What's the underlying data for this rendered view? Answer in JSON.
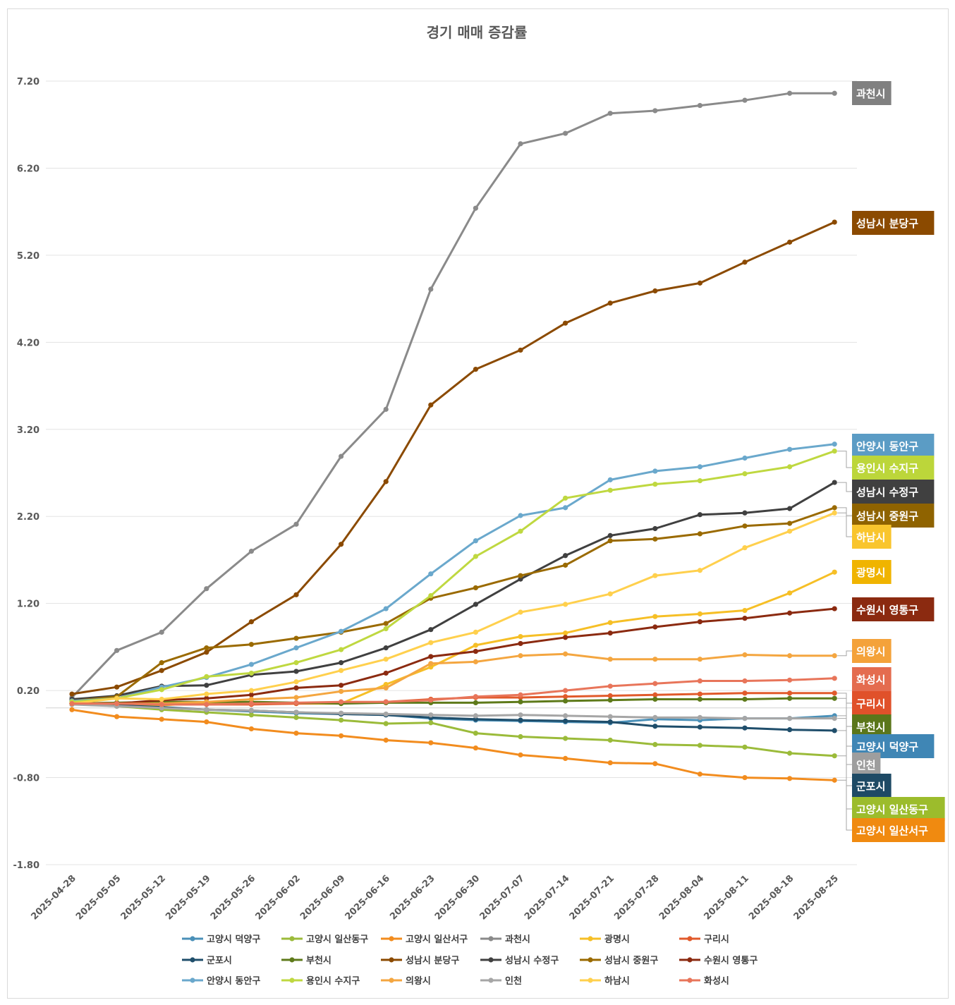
{
  "chart_data": {
    "type": "line",
    "title": "경기 매매 증감률",
    "xlabel": "",
    "ylabel": "",
    "ylim": [
      -1.8,
      7.2
    ],
    "yticks": [
      "7.20",
      "6.20",
      "5.20",
      "4.20",
      "3.20",
      "2.20",
      "1.20",
      "0.20",
      "-0.80",
      "-1.80"
    ],
    "grid": true,
    "legend_position": "bottom",
    "x": [
      "2025-04-28",
      "2025-05-05",
      "2025-05-12",
      "2025-05-19",
      "2025-05-26",
      "2025-06-02",
      "2025-06-09",
      "2025-06-16",
      "2025-06-23",
      "2025-06-30",
      "2025-07-07",
      "2025-07-14",
      "2025-07-21",
      "2025-07-28",
      "2025-08-04",
      "2025-08-11",
      "2025-08-18",
      "2025-08-25"
    ],
    "series": [
      {
        "name": "고양시 덕양구",
        "color": "#4a90b8",
        "values": [
          0.05,
          0.02,
          0.0,
          -0.02,
          -0.04,
          -0.06,
          -0.07,
          -0.08,
          -0.12,
          -0.14,
          -0.15,
          -0.16,
          -0.17,
          -0.13,
          -0.14,
          -0.12,
          -0.12,
          -0.09
        ]
      },
      {
        "name": "고양시 일산동구",
        "color": "#9bbb3a",
        "values": [
          0.05,
          0.02,
          -0.02,
          -0.05,
          -0.08,
          -0.11,
          -0.14,
          -0.18,
          -0.17,
          -0.29,
          -0.33,
          -0.35,
          -0.37,
          -0.42,
          -0.43,
          -0.45,
          -0.52,
          -0.55
        ]
      },
      {
        "name": "고양시 일산서구",
        "color": "#f28c1e",
        "values": [
          -0.02,
          -0.1,
          -0.13,
          -0.16,
          -0.24,
          -0.29,
          -0.32,
          -0.37,
          -0.4,
          -0.46,
          -0.54,
          -0.58,
          -0.63,
          -0.64,
          -0.76,
          -0.8,
          -0.81,
          -0.83
        ]
      },
      {
        "name": "과천시",
        "color": "#8a8a8a",
        "values": [
          0.12,
          0.66,
          0.87,
          1.37,
          1.8,
          2.11,
          2.89,
          3.43,
          4.81,
          5.74,
          6.48,
          6.6,
          6.83,
          6.86,
          6.92,
          6.98,
          7.06,
          7.06
        ]
      },
      {
        "name": "광명시",
        "color": "#f6bf26",
        "values": [
          0.05,
          0.04,
          0.03,
          0.06,
          0.05,
          0.05,
          0.05,
          0.27,
          0.47,
          0.72,
          0.82,
          0.86,
          0.98,
          1.05,
          1.08,
          1.12,
          1.32,
          1.56
        ]
      },
      {
        "name": "구리시",
        "color": "#e15a2b",
        "values": [
          0.05,
          0.06,
          0.04,
          0.04,
          0.04,
          0.05,
          0.06,
          0.07,
          0.1,
          0.12,
          0.12,
          0.13,
          0.14,
          0.15,
          0.16,
          0.17,
          0.17,
          0.17
        ]
      },
      {
        "name": "군포시",
        "color": "#1f4e6b",
        "values": [
          0.05,
          0.03,
          0.01,
          -0.02,
          -0.03,
          -0.05,
          -0.07,
          -0.08,
          -0.11,
          -0.13,
          -0.14,
          -0.15,
          -0.16,
          -0.21,
          -0.22,
          -0.23,
          -0.25,
          -0.26
        ]
      },
      {
        "name": "부천시",
        "color": "#5e7a1a",
        "values": [
          0.05,
          0.06,
          0.07,
          0.07,
          0.07,
          0.06,
          0.05,
          0.06,
          0.06,
          0.06,
          0.07,
          0.08,
          0.09,
          0.1,
          0.1,
          0.1,
          0.11,
          0.11
        ]
      },
      {
        "name": "성남시 분당구",
        "color": "#8b4a00",
        "values": [
          0.16,
          0.24,
          0.43,
          0.64,
          0.99,
          1.3,
          1.88,
          2.6,
          3.48,
          3.89,
          4.11,
          4.42,
          4.65,
          4.79,
          4.88,
          5.12,
          5.35,
          5.58
        ]
      },
      {
        "name": "성남시 수정구",
        "color": "#404040",
        "values": [
          0.1,
          0.14,
          0.25,
          0.26,
          0.38,
          0.42,
          0.52,
          0.69,
          0.9,
          1.19,
          1.48,
          1.75,
          1.98,
          2.06,
          2.22,
          2.24,
          2.29,
          2.59
        ]
      },
      {
        "name": "성남시 중원구",
        "color": "#9a6a00",
        "values": [
          0.08,
          0.13,
          0.52,
          0.69,
          0.73,
          0.8,
          0.87,
          0.97,
          1.26,
          1.38,
          1.52,
          1.64,
          1.92,
          1.94,
          2.0,
          2.09,
          2.12,
          2.3
        ]
      },
      {
        "name": "수원시 영통구",
        "color": "#8b2a10",
        "values": [
          0.05,
          0.05,
          0.09,
          0.11,
          0.15,
          0.23,
          0.26,
          0.4,
          0.59,
          0.65,
          0.74,
          0.81,
          0.86,
          0.93,
          0.99,
          1.03,
          1.09,
          1.14
        ]
      },
      {
        "name": "안양시 동안구",
        "color": "#6aa8cc",
        "values": [
          0.08,
          0.11,
          0.24,
          0.35,
          0.5,
          0.69,
          0.88,
          1.14,
          1.54,
          1.92,
          2.21,
          2.3,
          2.62,
          2.72,
          2.77,
          2.87,
          2.97,
          3.03
        ]
      },
      {
        "name": "용인시 수지구",
        "color": "#bfd840",
        "values": [
          0.07,
          0.11,
          0.21,
          0.36,
          0.4,
          0.52,
          0.67,
          0.91,
          1.29,
          1.74,
          2.03,
          2.41,
          2.5,
          2.57,
          2.61,
          2.69,
          2.77,
          2.95
        ]
      },
      {
        "name": "의왕시",
        "color": "#f4a640",
        "values": [
          0.04,
          0.05,
          0.05,
          0.07,
          0.1,
          0.12,
          0.19,
          0.23,
          0.51,
          0.53,
          0.6,
          0.62,
          0.56,
          0.56,
          0.56,
          0.61,
          0.6,
          0.6
        ]
      },
      {
        "name": "인천",
        "color": "#a6a6a6",
        "values": [
          0.04,
          0.02,
          0.0,
          -0.02,
          -0.03,
          -0.05,
          -0.06,
          -0.07,
          -0.08,
          -0.09,
          -0.08,
          -0.09,
          -0.1,
          -0.11,
          -0.11,
          -0.12,
          -0.12,
          -0.12
        ]
      },
      {
        "name": "하남시",
        "color": "#ffd04d",
        "values": [
          0.05,
          0.11,
          0.1,
          0.16,
          0.2,
          0.3,
          0.43,
          0.56,
          0.75,
          0.87,
          1.1,
          1.19,
          1.31,
          1.52,
          1.58,
          1.84,
          2.03,
          2.24
        ]
      },
      {
        "name": "화성시",
        "color": "#e8755a",
        "values": [
          0.05,
          0.05,
          0.04,
          0.04,
          0.05,
          0.06,
          0.07,
          0.07,
          0.09,
          0.13,
          0.15,
          0.2,
          0.25,
          0.28,
          0.31,
          0.31,
          0.32,
          0.34
        ]
      }
    ],
    "callouts": [
      {
        "label": "과천시",
        "series": "과천시",
        "color": "#808080"
      },
      {
        "label": "성남시 분당구",
        "series": "성남시 분당구",
        "color": "#8b4a00"
      },
      {
        "label": "안양시 동안구",
        "series": "안양시 동안구",
        "color": "#5b9cc5"
      },
      {
        "label": "용인시 수지구",
        "series": "용인시 수지구",
        "color": "#bcd63a"
      },
      {
        "label": "성남시 수정구",
        "series": "성남시 수정구",
        "color": "#404040"
      },
      {
        "label": "성남시 중원구",
        "series": "성남시 중원구",
        "color": "#8f6300"
      },
      {
        "label": "하남시",
        "series": "하남시",
        "color": "#f9c52d"
      },
      {
        "label": "광명시",
        "series": "광명시",
        "color": "#f0b400"
      },
      {
        "label": "수원시 영통구",
        "series": "수원시 영통구",
        "color": "#8b2a10"
      },
      {
        "label": "의왕시",
        "series": "의왕시",
        "color": "#f4a23a"
      },
      {
        "label": "화성시",
        "series": "화성시",
        "color": "#e46c4f"
      },
      {
        "label": "구리시",
        "series": "구리시",
        "color": "#e0512a"
      },
      {
        "label": "부천시",
        "series": "부천시",
        "color": "#5b761a"
      },
      {
        "label": "고양시 덕양구",
        "series": "고양시 덕양구",
        "color": "#3f86b5"
      },
      {
        "label": "인천",
        "series": "인천",
        "color": "#9e9e9e"
      },
      {
        "label": "군포시",
        "series": "군포시",
        "color": "#1e4a65"
      },
      {
        "label": "고양시 일산동구",
        "series": "고양시 일산동구",
        "color": "#9cbc2c"
      },
      {
        "label": "고양시 일산서구",
        "series": "고양시 일산서구",
        "color": "#f08a10"
      }
    ]
  }
}
